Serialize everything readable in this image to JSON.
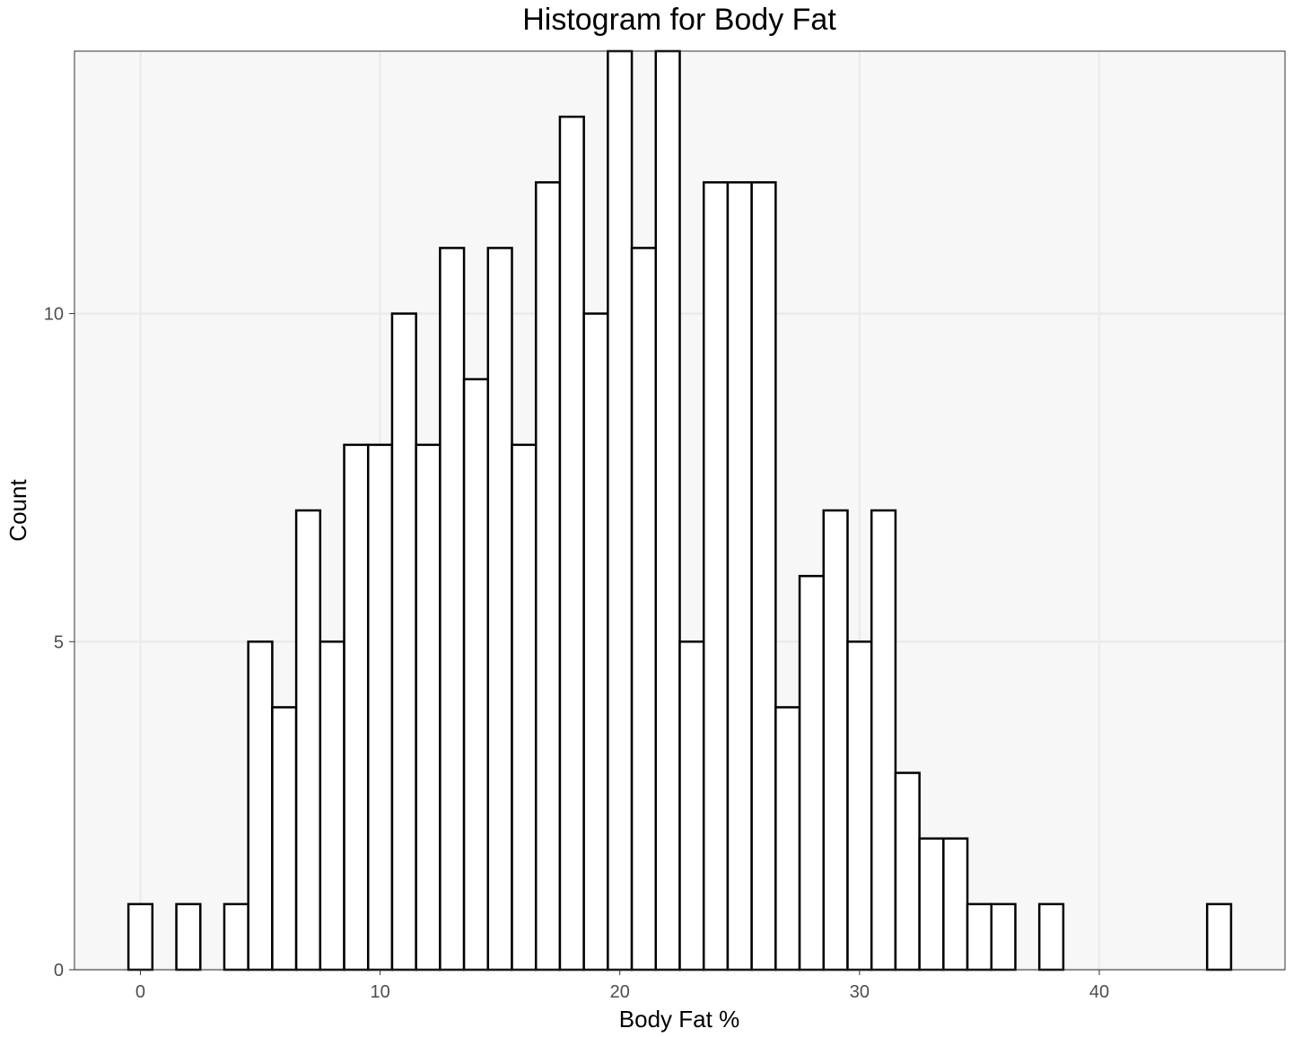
{
  "chart_data": {
    "type": "bar",
    "title": "Histogram for Body Fat",
    "xlabel": "Body Fat %",
    "ylabel": "Count",
    "bin_width": 1,
    "x": [
      0,
      2,
      4,
      5,
      6,
      7,
      8,
      9,
      10,
      11,
      12,
      13,
      14,
      15,
      16,
      17,
      18,
      19,
      20,
      21,
      22,
      23,
      24,
      25,
      26,
      27,
      28,
      29,
      30,
      31,
      32,
      33,
      34,
      35,
      36,
      38,
      45
    ],
    "values": [
      1,
      1,
      1,
      5,
      4,
      7,
      5,
      8,
      8,
      10,
      8,
      11,
      9,
      11,
      8,
      12,
      13,
      10,
      14,
      11,
      14,
      5,
      12,
      12,
      12,
      4,
      6,
      7,
      5,
      7,
      3,
      2,
      2,
      1,
      1,
      1,
      1
    ],
    "xlim": [
      -2.75,
      47.75
    ],
    "ylim": [
      0,
      14
    ],
    "x_ticks": [
      0,
      10,
      20,
      30,
      40
    ],
    "y_ticks": [
      0,
      5,
      10
    ],
    "x_tick_labels": [
      "0",
      "10",
      "20",
      "30",
      "40"
    ],
    "y_tick_labels": [
      "0",
      "5",
      "10"
    ],
    "grid": true,
    "colors": {
      "bar_fill": "#ffffff",
      "bar_outline": "#000000",
      "panel_background": "#f7f7f7",
      "grid": "#ebebeb"
    }
  }
}
